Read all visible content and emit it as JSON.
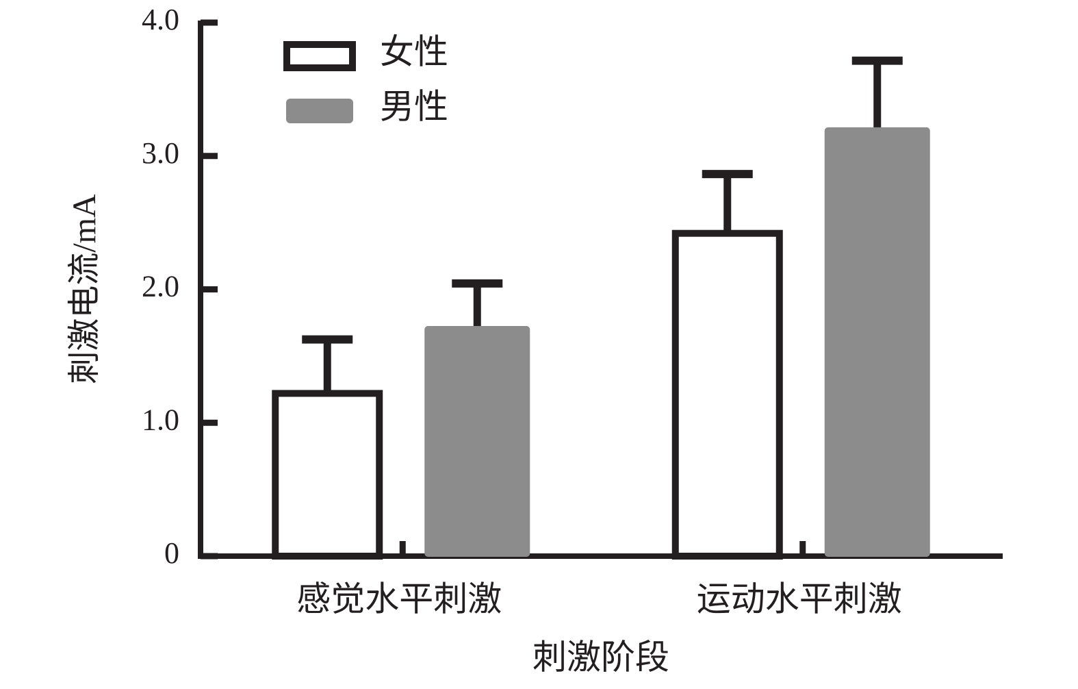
{
  "chart_data": {
    "type": "bar",
    "xlabel": "刺激阶段",
    "ylabel": "刺激电流/mA",
    "categories": [
      "感觉水平刺激",
      "运动水平刺激"
    ],
    "series": [
      {
        "name": "女性",
        "color": "#ffffff",
        "edgecolor": "#231f20",
        "values": [
          1.22,
          2.42
        ],
        "errors": [
          0.43,
          0.47
        ]
      },
      {
        "name": "男性",
        "color": "#8c8c8c",
        "edgecolor": "#8c8c8c",
        "values": [
          1.72,
          3.21
        ],
        "errors": [
          0.35,
          0.53
        ]
      }
    ],
    "errorcolor": "#231f20",
    "ylim": [
      0,
      4
    ],
    "yticks": [
      0,
      {
        "value": 1,
        "label": "1.0"
      },
      {
        "value": 2,
        "label": "2.0"
      },
      {
        "value": 3,
        "label": "3.0"
      },
      {
        "value": 4,
        "label": "4.0"
      }
    ],
    "legend": "upper left"
  }
}
